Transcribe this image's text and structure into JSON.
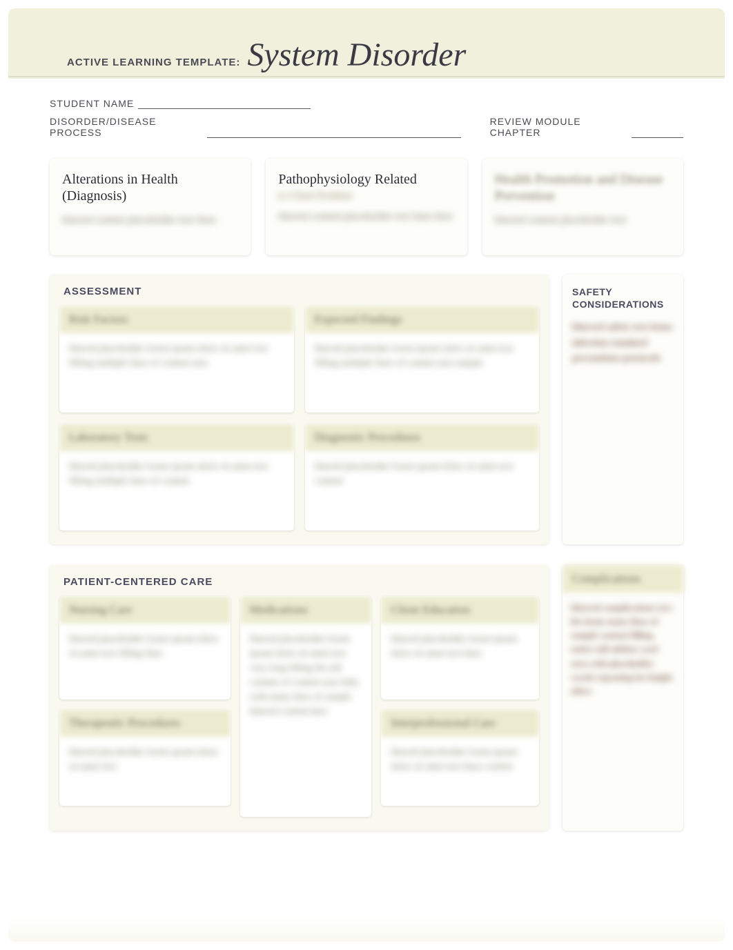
{
  "header": {
    "prefix": "ACTIVE LEARNING TEMPLATE:",
    "title": "System Disorder"
  },
  "meta": {
    "student_label": "STUDENT NAME",
    "disorder_label": "DISORDER/DISEASE PROCESS",
    "chapter_label": "REVIEW MODULE CHAPTER"
  },
  "top_cards": {
    "alterations": {
      "title": "Alterations in Health (Diagnosis)",
      "body": "blurred content placeholder text lines"
    },
    "patho": {
      "title": "Pathophysiology Related",
      "subtitle": "to Client Problem",
      "body": "blurred content placeholder text lines here"
    },
    "health": {
      "title": "Health Promotion and Disease Prevention",
      "body": "blurred content placeholder text"
    }
  },
  "assessment": {
    "header": "ASSESSMENT",
    "risk": {
      "title": "Risk Factors",
      "body": "blurred placeholder lorem ipsum dolor sit amet text filling multiple lines of content area"
    },
    "expected": {
      "title": "Expected Findings",
      "body": "blurred placeholder lorem ipsum dolor sit amet text filling multiple lines of content area sample"
    },
    "lab": {
      "title": "Laboratory Tests",
      "body": "blurred placeholder lorem ipsum dolor sit amet text filling multiple lines of content"
    },
    "diag": {
      "title": "Diagnostic Procedures",
      "body": "blurred placeholder lorem ipsum dolor sit amet text content"
    }
  },
  "safety": {
    "header": "SAFETY CONSIDERATIONS",
    "body": "blurred safety text items infection standard precautions protocols"
  },
  "pcc": {
    "header": "PATIENT-CENTERED CARE",
    "nursing": {
      "title": "Nursing Care",
      "body": "blurred placeholder lorem ipsum dolor sit amet text filling lines"
    },
    "therapeutic": {
      "title": "Therapeutic Procedures",
      "body": "blurred placeholder lorem ipsum dolor sit amet text"
    },
    "meds": {
      "title": "Medications",
      "body": "blurred placeholder lorem ipsum dolor sit amet text very long filling the tall column of content area fully with many lines of sample blurred content here"
    },
    "client_ed": {
      "title": "Client Education",
      "body": "blurred placeholder lorem ipsum dolor sit amet text lines"
    },
    "interprof": {
      "title": "Interprofessional Care",
      "body": "blurred placeholder lorem ipsum dolor sit amet text lines content"
    }
  },
  "complications": {
    "title": "Complications",
    "body": "blurred complications text list items many lines of sample content filling entire tall sidebar card area with placeholder words repeating for height effect"
  },
  "colors": {
    "page_bg": "#f0f0dc",
    "card_bg": "#fdfdfa",
    "panel_bg": "#faf9f0",
    "card_hdr_bg": "#ecebcf",
    "text_dark": "#3a3a45",
    "text_label": "#4a4a55"
  }
}
